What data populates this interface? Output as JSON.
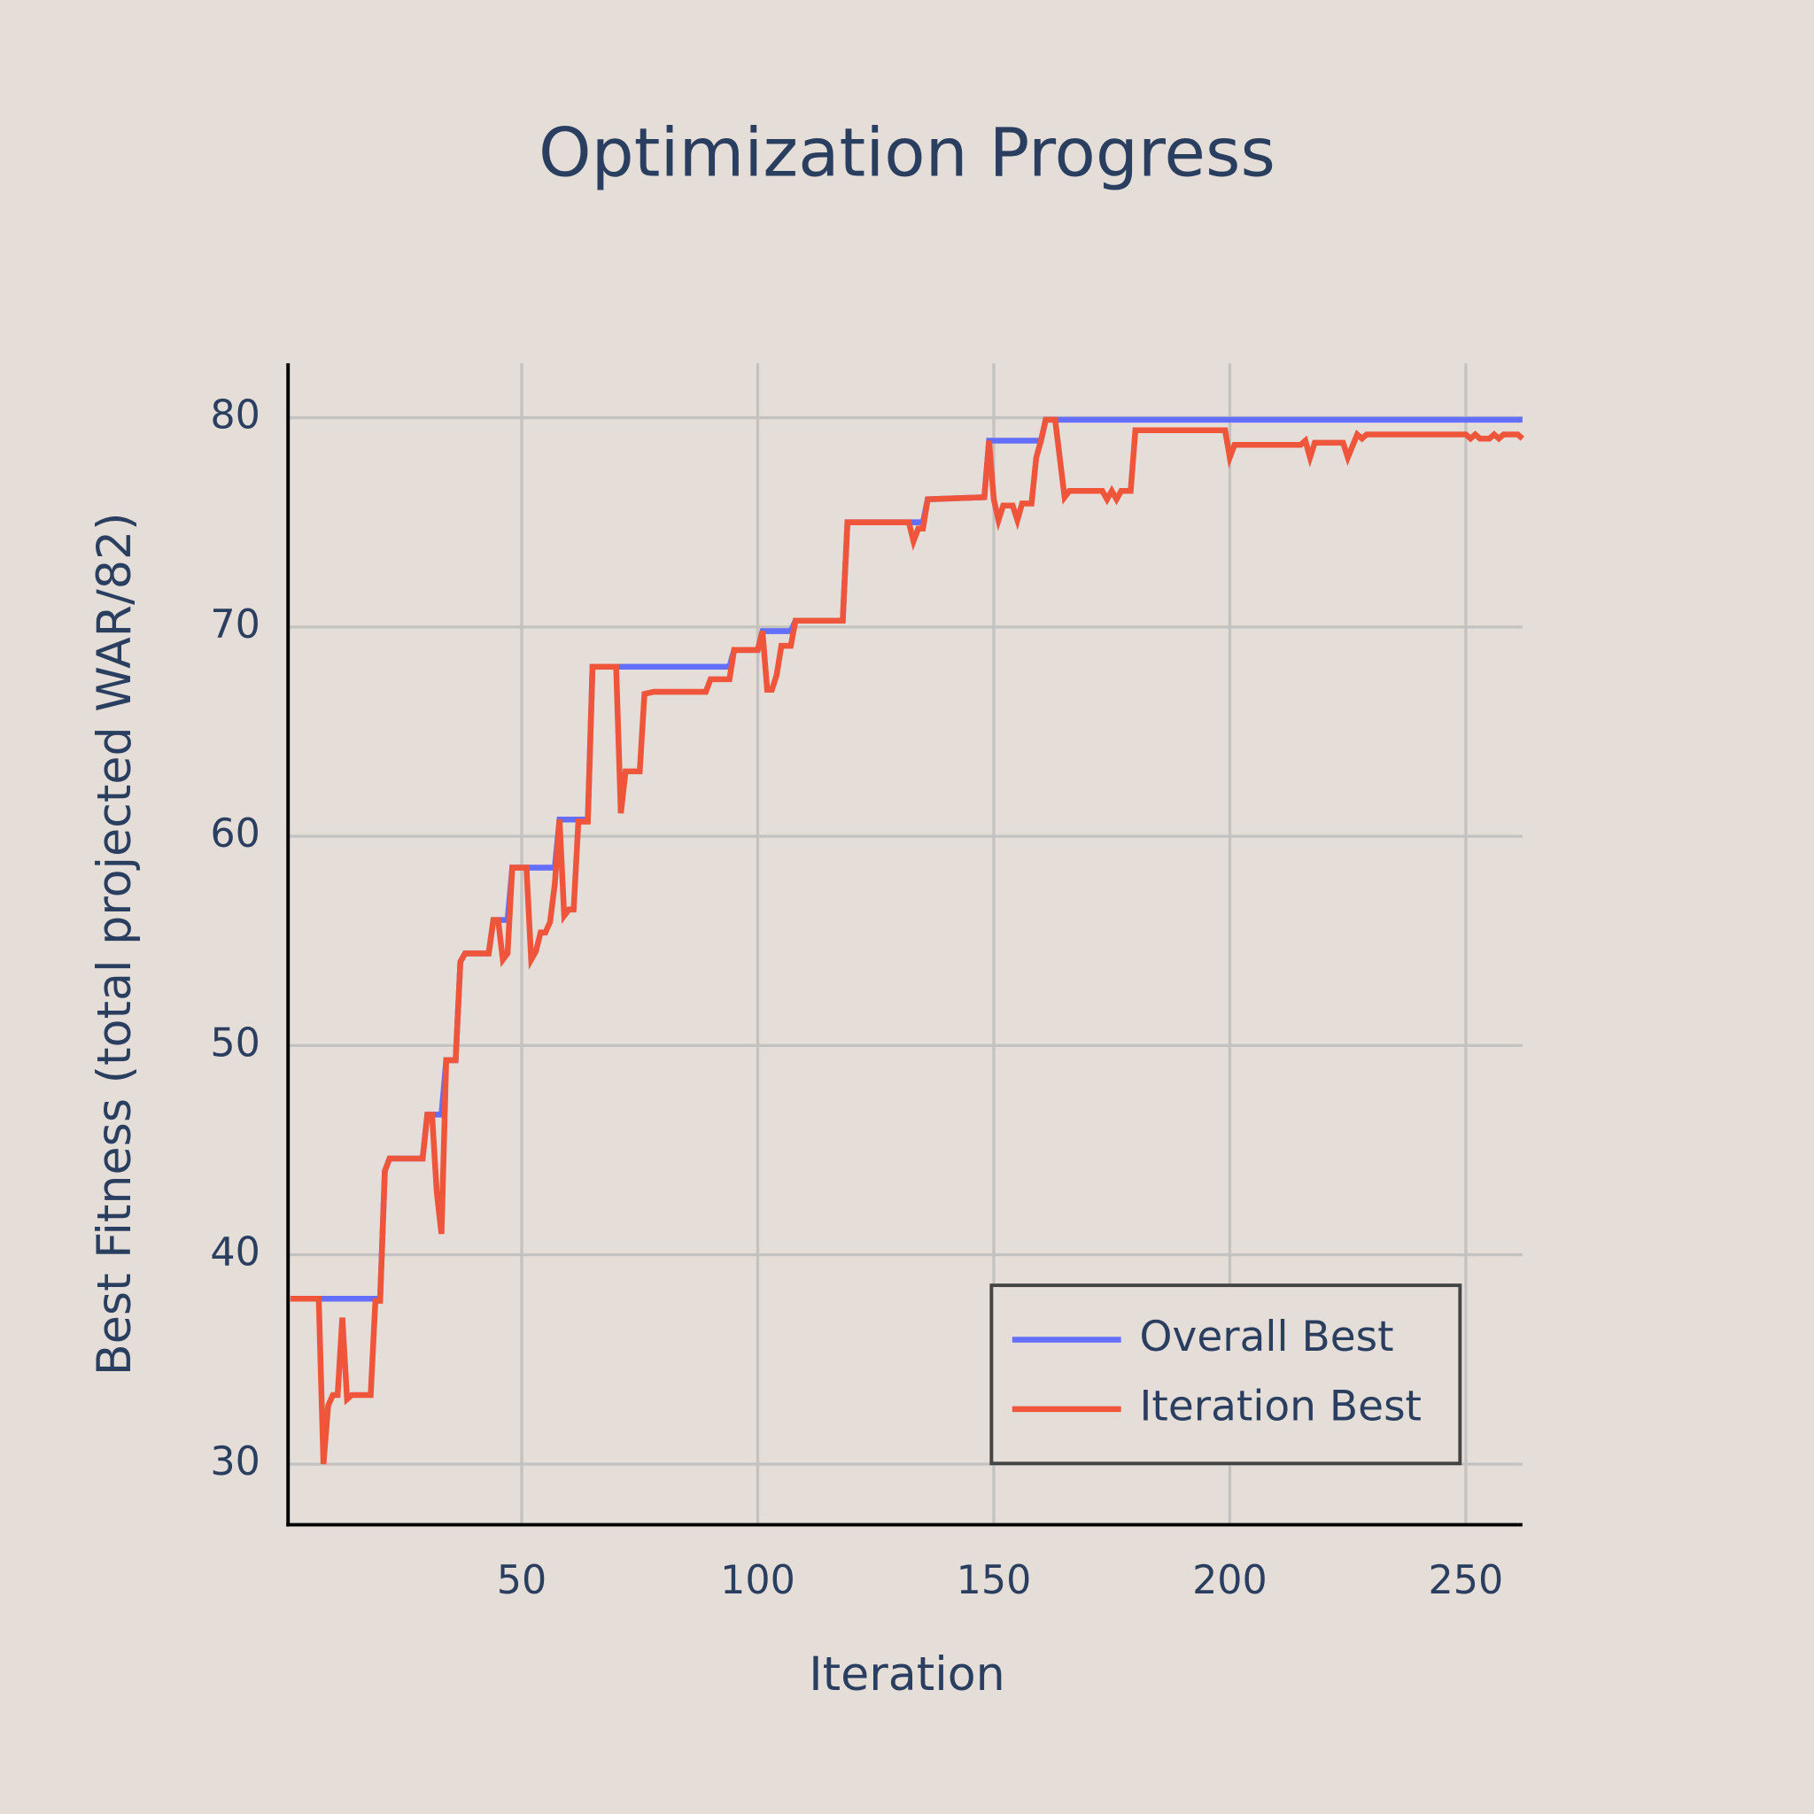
{
  "chart_data": {
    "type": "line",
    "title": "Optimization Progress",
    "x_label": "Iteration",
    "y_label": "Best Fitness (total projected WAR/82)",
    "x": [
      1,
      7,
      8,
      9,
      10,
      11,
      12,
      13,
      14,
      18,
      19,
      20,
      21,
      22,
      29,
      30,
      31,
      32,
      33,
      34,
      36,
      37,
      38,
      43,
      44,
      45,
      46,
      47,
      48,
      51,
      52,
      53,
      54,
      55,
      56,
      57,
      58,
      59,
      60,
      61,
      62,
      64,
      65,
      70,
      71,
      72,
      75,
      76,
      78,
      89,
      90,
      94,
      95,
      100,
      101,
      102,
      103,
      104,
      105,
      107,
      108,
      118,
      119,
      132,
      133,
      134,
      135,
      136,
      148,
      149,
      150,
      151,
      152,
      154,
      155,
      156,
      158,
      159,
      160,
      161,
      163,
      165,
      166,
      173,
      174,
      175,
      176,
      177,
      179,
      180,
      199,
      200,
      201,
      215,
      216,
      217,
      218,
      224,
      225,
      227,
      228,
      229,
      250,
      251,
      252,
      253,
      255,
      256,
      257,
      258,
      261,
      262
    ],
    "series": [
      {
        "name": "Overall Best",
        "color": "#636efa",
        "values": [
          37.9,
          37.9,
          37.9,
          37.9,
          37.9,
          37.9,
          37.9,
          37.9,
          37.9,
          37.9,
          37.9,
          37.9,
          44,
          44.6,
          44.6,
          46.7,
          46.7,
          46.7,
          46.7,
          49.3,
          49.3,
          54,
          54.4,
          54.4,
          56,
          56,
          56,
          56,
          58.5,
          58.5,
          58.5,
          58.5,
          58.5,
          58.5,
          58.5,
          58.5,
          60.8,
          60.8,
          60.8,
          60.8,
          60.8,
          60.8,
          68.1,
          68.1,
          68.1,
          68.1,
          68.1,
          68.1,
          68.1,
          68.1,
          68.1,
          68.1,
          68.9,
          68.9,
          69.8,
          69.8,
          69.8,
          69.8,
          69.8,
          69.8,
          70.3,
          70.3,
          75,
          75,
          75,
          75,
          75,
          76.1,
          76.2,
          78.9,
          78.9,
          78.9,
          78.9,
          78.9,
          78.9,
          78.9,
          78.9,
          78.9,
          78.9,
          79.9,
          79.9,
          79.9,
          79.9,
          79.9,
          79.9,
          79.9,
          79.9,
          79.9,
          79.9,
          79.9,
          79.9,
          79.9,
          79.9,
          79.9,
          79.9,
          79.9,
          79.9,
          79.9,
          79.9,
          79.9,
          79.9,
          79.9,
          79.9,
          79.9,
          79.9,
          79.9,
          79.9,
          79.9,
          79.9,
          79.9,
          79.9,
          79.9
        ]
      },
      {
        "name": "Iteration Best",
        "color": "#ef553b",
        "values": [
          37.9,
          37.9,
          30,
          32.8,
          33.3,
          33.3,
          37,
          33.1,
          33.3,
          33.3,
          37.8,
          37.8,
          44,
          44.6,
          44.6,
          46.7,
          46.7,
          43,
          41,
          49.3,
          49.3,
          54,
          54.4,
          54.4,
          56,
          56,
          54.1,
          54.4,
          58.5,
          58.5,
          54.1,
          54.5,
          55.4,
          55.4,
          55.9,
          57.7,
          60.8,
          56.2,
          56.5,
          56.5,
          60.7,
          60.7,
          68.1,
          68.1,
          61.1,
          63.1,
          63.1,
          66.8,
          66.9,
          66.9,
          67.5,
          67.5,
          68.9,
          68.9,
          69.8,
          67,
          67,
          67.7,
          69.1,
          69.1,
          70.3,
          70.3,
          75,
          75,
          74.1,
          74.7,
          74.7,
          76.1,
          76.2,
          78.9,
          76.1,
          75.1,
          75.8,
          75.8,
          75.1,
          75.9,
          75.9,
          78.1,
          78.9,
          79.9,
          79.9,
          76.2,
          76.5,
          76.5,
          76.1,
          76.5,
          76.1,
          76.5,
          76.5,
          79.4,
          79.4,
          78.1,
          78.7,
          78.7,
          78.9,
          78.1,
          78.8,
          78.8,
          78.1,
          79.2,
          79,
          79.2,
          79.2,
          79,
          79.2,
          79,
          79,
          79.2,
          79,
          79.2,
          79.2,
          79
        ]
      }
    ],
    "xlim": [
      0.5,
      262
    ],
    "ylim": [
      27.1,
      82.6
    ],
    "xticks": [
      50,
      100,
      150,
      200,
      250
    ],
    "yticks": [
      30,
      40,
      50,
      60,
      70,
      80
    ],
    "grid": true,
    "legend": "lower right"
  }
}
